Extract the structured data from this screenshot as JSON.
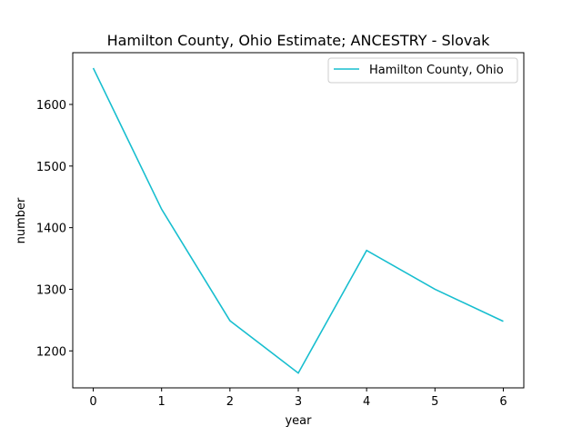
{
  "chart_data": {
    "type": "line",
    "title": "Hamilton County, Ohio Estimate; ANCESTRY - Slovak",
    "xlabel": "year",
    "ylabel": "number",
    "x": [
      0,
      1,
      2,
      3,
      4,
      5,
      6
    ],
    "series": [
      {
        "name": "Hamilton County, Ohio",
        "color": "#17becf",
        "values": [
          1659,
          1430,
          1249,
          1164,
          1363,
          1300,
          1248
        ]
      }
    ],
    "xlim": [
      -0.3,
      6.3
    ],
    "ylim": [
      1140,
      1684
    ],
    "xticks": [
      0,
      1,
      2,
      3,
      4,
      5,
      6
    ],
    "yticks": [
      1200,
      1300,
      1400,
      1500,
      1600
    ],
    "grid": false,
    "legend_position": "top-right"
  }
}
